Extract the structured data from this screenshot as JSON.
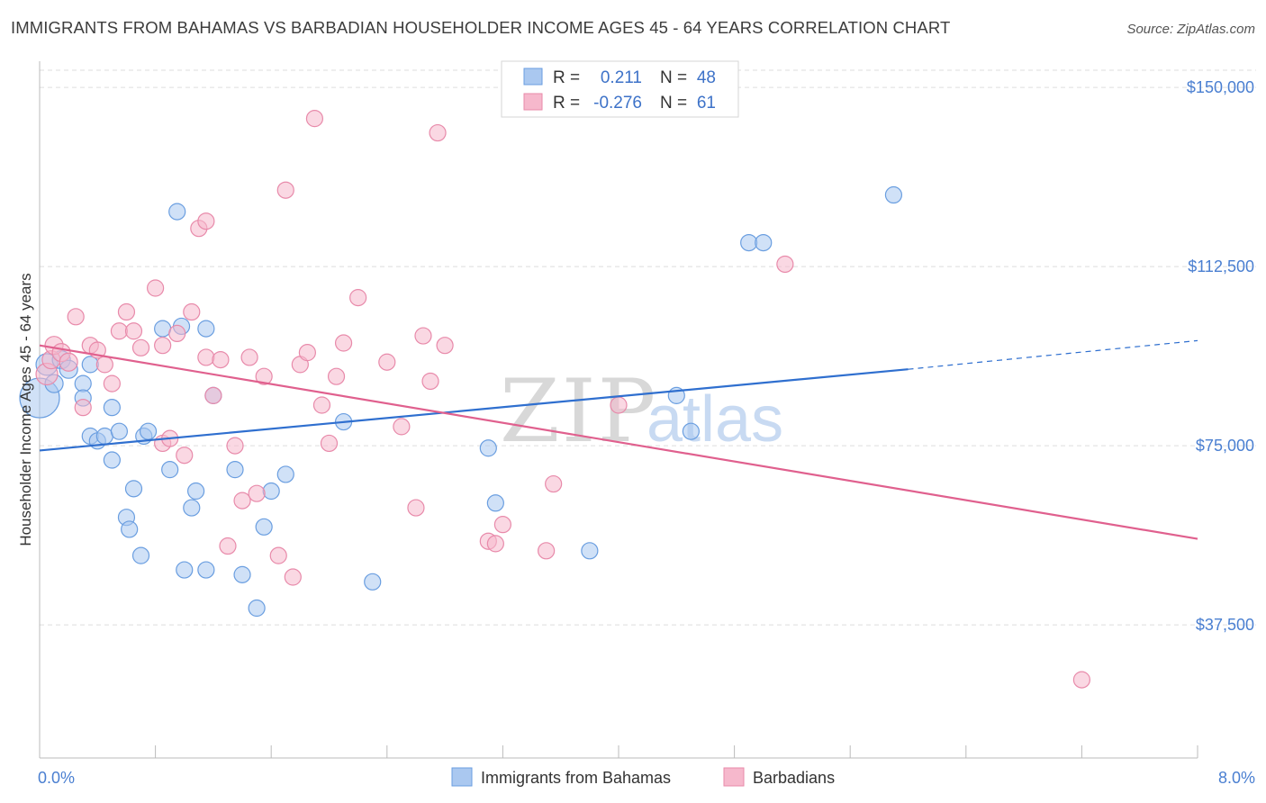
{
  "title": "IMMIGRANTS FROM BAHAMAS VS BARBADIAN HOUSEHOLDER INCOME AGES 45 - 64 YEARS CORRELATION CHART",
  "source": "Source: ZipAtlas.com",
  "watermark": {
    "zip": "ZIP",
    "atlas": "atlas"
  },
  "colors": {
    "blue_fill": "#aac8f0",
    "blue_stroke": "#6a9ee0",
    "blue_line": "#2f6fcf",
    "pink_fill": "#f6b8cc",
    "pink_stroke": "#e88aaa",
    "pink_line": "#e0608e",
    "axis_text": "#4a7fd1",
    "grid": "#dddddd"
  },
  "legend": {
    "rows": [
      {
        "r_label": "R =",
        "r_value": "0.211",
        "n_label": "N =",
        "n_value": "48"
      },
      {
        "r_label": "R =",
        "r_value": "-0.276",
        "n_label": "N =",
        "n_value": "61"
      }
    ]
  },
  "chart_data": {
    "type": "scatter",
    "xlabel": "",
    "ylabel": "Householder Income Ages 45 - 64 years",
    "xlim": [
      0,
      8
    ],
    "ylim": [
      10000,
      157000
    ],
    "x_tick_labels": {
      "left": "0.0%",
      "right": "8.0%"
    },
    "y_ticks": [
      {
        "value": 37500,
        "label": "$37,500"
      },
      {
        "value": 75000,
        "label": "$75,000"
      },
      {
        "value": 112500,
        "label": "$112,500"
      },
      {
        "value": 150000,
        "label": "$150,000"
      }
    ],
    "series": [
      {
        "name": "Immigrants from Bahamas",
        "color": "#aac8f0",
        "points": [
          [
            0.0,
            85000,
            22
          ],
          [
            0.05,
            92000,
            12
          ],
          [
            0.1,
            88000,
            10
          ],
          [
            0.15,
            93000,
            10
          ],
          [
            0.2,
            91000,
            10
          ],
          [
            0.3,
            88000,
            9
          ],
          [
            0.3,
            85000,
            9
          ],
          [
            0.35,
            92000,
            9
          ],
          [
            0.35,
            77000,
            9
          ],
          [
            0.4,
            76000,
            9
          ],
          [
            0.45,
            77000,
            9
          ],
          [
            0.5,
            83000,
            9
          ],
          [
            0.5,
            72000,
            9
          ],
          [
            0.55,
            78000,
            9
          ],
          [
            0.6,
            60000,
            9
          ],
          [
            0.62,
            57500,
            9
          ],
          [
            0.65,
            66000,
            9
          ],
          [
            0.7,
            52000,
            9
          ],
          [
            0.72,
            77000,
            9
          ],
          [
            0.75,
            78000,
            9
          ],
          [
            0.85,
            99500,
            9
          ],
          [
            0.9,
            70000,
            9
          ],
          [
            0.95,
            124000,
            9
          ],
          [
            0.98,
            100000,
            9
          ],
          [
            1.0,
            49000,
            9
          ],
          [
            1.05,
            62000,
            9
          ],
          [
            1.08,
            65500,
            9
          ],
          [
            1.15,
            49000,
            9
          ],
          [
            1.15,
            99500,
            9
          ],
          [
            1.2,
            85500,
            9
          ],
          [
            1.35,
            70000,
            9
          ],
          [
            1.4,
            48000,
            9
          ],
          [
            1.5,
            41000,
            9
          ],
          [
            1.55,
            58000,
            9
          ],
          [
            1.6,
            65500,
            9
          ],
          [
            1.7,
            69000,
            9
          ],
          [
            2.1,
            80000,
            9
          ],
          [
            2.3,
            46500,
            9
          ],
          [
            3.1,
            74500,
            9
          ],
          [
            3.15,
            63000,
            9
          ],
          [
            3.8,
            53000,
            9
          ],
          [
            4.4,
            85500,
            9
          ],
          [
            4.5,
            78000,
            9
          ],
          [
            4.9,
            117500,
            9
          ],
          [
            5.0,
            117500,
            9
          ],
          [
            5.9,
            127500,
            9
          ]
        ]
      },
      {
        "name": "Barbadians",
        "color": "#f6b8cc",
        "points": [
          [
            0.05,
            90000,
            12
          ],
          [
            0.08,
            93000,
            10
          ],
          [
            0.1,
            96000,
            10
          ],
          [
            0.15,
            94500,
            10
          ],
          [
            0.2,
            92500,
            10
          ],
          [
            0.25,
            102000,
            9
          ],
          [
            0.3,
            83000,
            9
          ],
          [
            0.35,
            96000,
            9
          ],
          [
            0.4,
            95000,
            9
          ],
          [
            0.45,
            92000,
            9
          ],
          [
            0.5,
            88000,
            9
          ],
          [
            0.55,
            99000,
            9
          ],
          [
            0.6,
            103000,
            9
          ],
          [
            0.65,
            99000,
            9
          ],
          [
            0.7,
            95500,
            9
          ],
          [
            0.8,
            108000,
            9
          ],
          [
            0.85,
            96000,
            9
          ],
          [
            0.85,
            75500,
            9
          ],
          [
            0.9,
            76500,
            9
          ],
          [
            0.95,
            98500,
            9
          ],
          [
            1.0,
            73000,
            9
          ],
          [
            1.05,
            103000,
            9
          ],
          [
            1.1,
            120500,
            9
          ],
          [
            1.15,
            122000,
            9
          ],
          [
            1.15,
            93500,
            9
          ],
          [
            1.2,
            85500,
            9
          ],
          [
            1.25,
            93000,
            9
          ],
          [
            1.3,
            54000,
            9
          ],
          [
            1.35,
            75000,
            9
          ],
          [
            1.4,
            63500,
            9
          ],
          [
            1.45,
            93500,
            9
          ],
          [
            1.5,
            65000,
            9
          ],
          [
            1.55,
            89500,
            9
          ],
          [
            1.65,
            52000,
            9
          ],
          [
            1.7,
            128500,
            9
          ],
          [
            1.75,
            47500,
            9
          ],
          [
            1.8,
            92000,
            9
          ],
          [
            1.85,
            94500,
            9
          ],
          [
            1.9,
            143500,
            9
          ],
          [
            1.95,
            83500,
            9
          ],
          [
            2.0,
            75500,
            9
          ],
          [
            2.05,
            89500,
            9
          ],
          [
            2.1,
            96500,
            9
          ],
          [
            2.2,
            106000,
            9
          ],
          [
            2.4,
            92500,
            9
          ],
          [
            2.5,
            79000,
            9
          ],
          [
            2.6,
            62000,
            9
          ],
          [
            2.65,
            98000,
            9
          ],
          [
            2.7,
            88500,
            9
          ],
          [
            2.75,
            140500,
            9
          ],
          [
            2.8,
            96000,
            9
          ],
          [
            3.1,
            55000,
            9
          ],
          [
            3.15,
            54500,
            9
          ],
          [
            3.2,
            58500,
            9
          ],
          [
            3.5,
            53000,
            9
          ],
          [
            3.5,
            147500,
            9
          ],
          [
            3.55,
            67000,
            9
          ],
          [
            4.0,
            83500,
            9
          ],
          [
            5.15,
            113000,
            9
          ],
          [
            7.2,
            26000,
            9
          ]
        ]
      }
    ],
    "trend_lines": [
      {
        "series": "Immigrants from Bahamas",
        "from": [
          0,
          74000
        ],
        "to": [
          6.0,
          91000
        ],
        "dashed_to": [
          8.0,
          97000
        ]
      },
      {
        "series": "Barbadians",
        "from": [
          0,
          96000
        ],
        "to": [
          8.0,
          55500
        ]
      }
    ]
  }
}
